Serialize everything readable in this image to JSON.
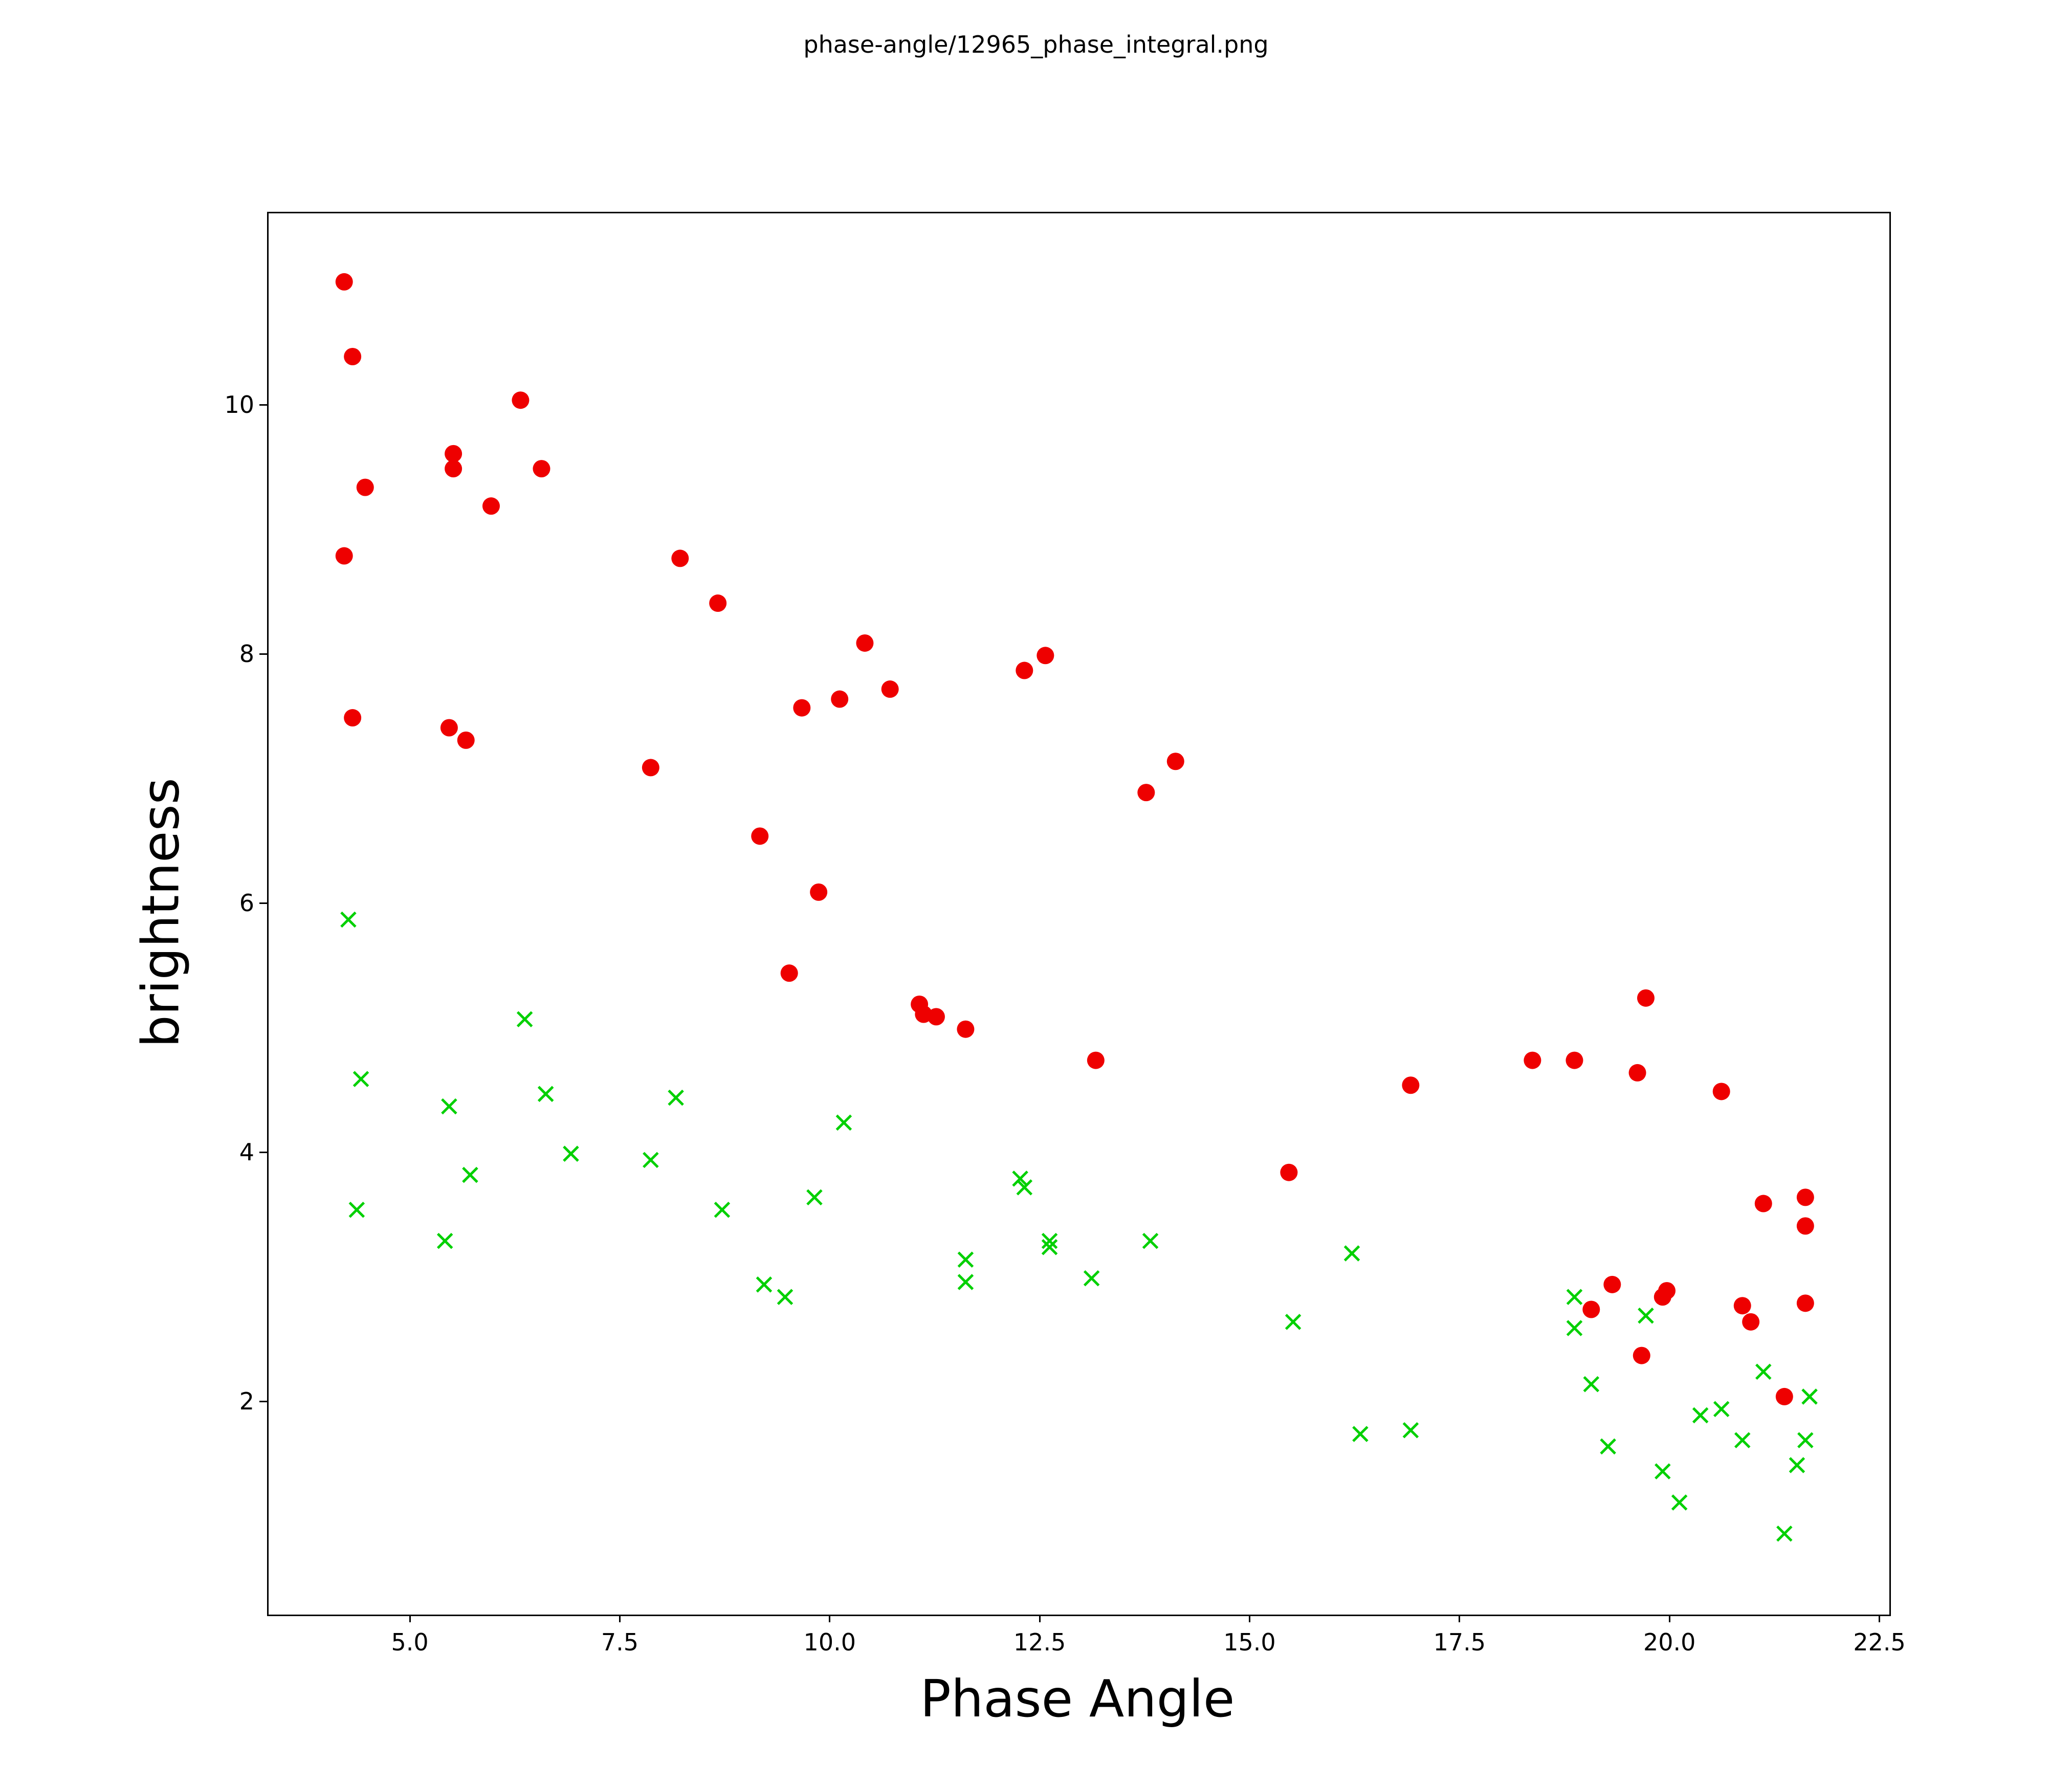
{
  "title": "phase-angle/12965_phase_integral.png",
  "chart_data": {
    "type": "scatter",
    "title": "phase-angle/12965_phase_integral.png",
    "xlabel": "Phase Angle",
    "ylabel": "brightness",
    "xlim": [
      3.3,
      22.6
    ],
    "ylim": [
      0.3,
      11.55
    ],
    "grid": false,
    "legend": null,
    "x_ticks": {
      "values": [
        5.0,
        7.5,
        10.0,
        12.5,
        15.0,
        17.5,
        20.0,
        22.5
      ],
      "labels": [
        "5.0",
        "7.5",
        "10.0",
        "12.5",
        "15.0",
        "17.5",
        "20.0",
        "22.5"
      ]
    },
    "y_ticks": {
      "values": [
        2,
        4,
        6,
        8,
        10
      ],
      "labels": [
        "2",
        "4",
        "6",
        "8",
        "10"
      ]
    },
    "series": [
      {
        "name": "red-circle-series",
        "marker": "circle",
        "color": "#ee0000",
        "points": [
          [
            4.2,
            11.0
          ],
          [
            4.3,
            10.4
          ],
          [
            4.45,
            9.35
          ],
          [
            4.2,
            8.8
          ],
          [
            4.3,
            7.5
          ],
          [
            5.5,
            9.62
          ],
          [
            5.5,
            9.5
          ],
          [
            5.45,
            7.42
          ],
          [
            5.65,
            7.32
          ],
          [
            5.95,
            9.2
          ],
          [
            6.3,
            10.05
          ],
          [
            6.55,
            9.5
          ],
          [
            7.85,
            7.1
          ],
          [
            8.2,
            8.78
          ],
          [
            8.65,
            8.42
          ],
          [
            9.15,
            6.55
          ],
          [
            9.5,
            5.45
          ],
          [
            9.65,
            7.58
          ],
          [
            9.85,
            6.1
          ],
          [
            10.1,
            7.65
          ],
          [
            10.4,
            8.1
          ],
          [
            10.7,
            7.73
          ],
          [
            11.05,
            5.2
          ],
          [
            11.1,
            5.12
          ],
          [
            11.25,
            5.1
          ],
          [
            11.6,
            5.0
          ],
          [
            12.3,
            7.88
          ],
          [
            12.55,
            8.0
          ],
          [
            13.15,
            4.75
          ],
          [
            13.75,
            6.9
          ],
          [
            14.1,
            7.15
          ],
          [
            15.45,
            3.85
          ],
          [
            16.9,
            4.55
          ],
          [
            18.35,
            4.75
          ],
          [
            18.85,
            4.75
          ],
          [
            19.05,
            2.75
          ],
          [
            19.3,
            2.95
          ],
          [
            19.6,
            4.65
          ],
          [
            19.65,
            2.38
          ],
          [
            19.7,
            5.25
          ],
          [
            19.9,
            2.85
          ],
          [
            19.95,
            2.9
          ],
          [
            20.6,
            4.5
          ],
          [
            20.85,
            2.78
          ],
          [
            20.95,
            2.65
          ],
          [
            21.1,
            3.6
          ],
          [
            21.35,
            2.05
          ],
          [
            21.6,
            3.65
          ],
          [
            21.6,
            3.42
          ],
          [
            21.6,
            2.8
          ]
        ]
      },
      {
        "name": "green-x-series",
        "marker": "x",
        "color": "#00d000",
        "points": [
          [
            4.25,
            5.88
          ],
          [
            4.4,
            4.6
          ],
          [
            4.35,
            3.55
          ],
          [
            5.45,
            4.38
          ],
          [
            5.4,
            3.3
          ],
          [
            5.7,
            3.83
          ],
          [
            6.35,
            5.08
          ],
          [
            6.6,
            4.48
          ],
          [
            6.9,
            4.0
          ],
          [
            7.85,
            3.95
          ],
          [
            8.15,
            4.45
          ],
          [
            8.7,
            3.55
          ],
          [
            9.2,
            2.95
          ],
          [
            9.45,
            2.85
          ],
          [
            9.8,
            3.65
          ],
          [
            10.15,
            4.25
          ],
          [
            11.6,
            3.15
          ],
          [
            11.6,
            2.97
          ],
          [
            12.25,
            3.8
          ],
          [
            12.3,
            3.73
          ],
          [
            12.6,
            3.3
          ],
          [
            12.6,
            3.25
          ],
          [
            13.1,
            3.0
          ],
          [
            13.8,
            3.3
          ],
          [
            15.5,
            2.65
          ],
          [
            16.2,
            3.2
          ],
          [
            16.3,
            1.75
          ],
          [
            16.9,
            1.78
          ],
          [
            18.85,
            2.85
          ],
          [
            18.85,
            2.6
          ],
          [
            19.05,
            2.15
          ],
          [
            19.25,
            1.65
          ],
          [
            19.7,
            2.7
          ],
          [
            19.9,
            1.45
          ],
          [
            20.1,
            1.2
          ],
          [
            20.35,
            1.9
          ],
          [
            20.6,
            1.95
          ],
          [
            20.85,
            1.7
          ],
          [
            21.1,
            2.25
          ],
          [
            21.35,
            0.95
          ],
          [
            21.5,
            1.5
          ],
          [
            21.65,
            2.05
          ],
          [
            21.6,
            1.7
          ]
        ]
      }
    ]
  }
}
